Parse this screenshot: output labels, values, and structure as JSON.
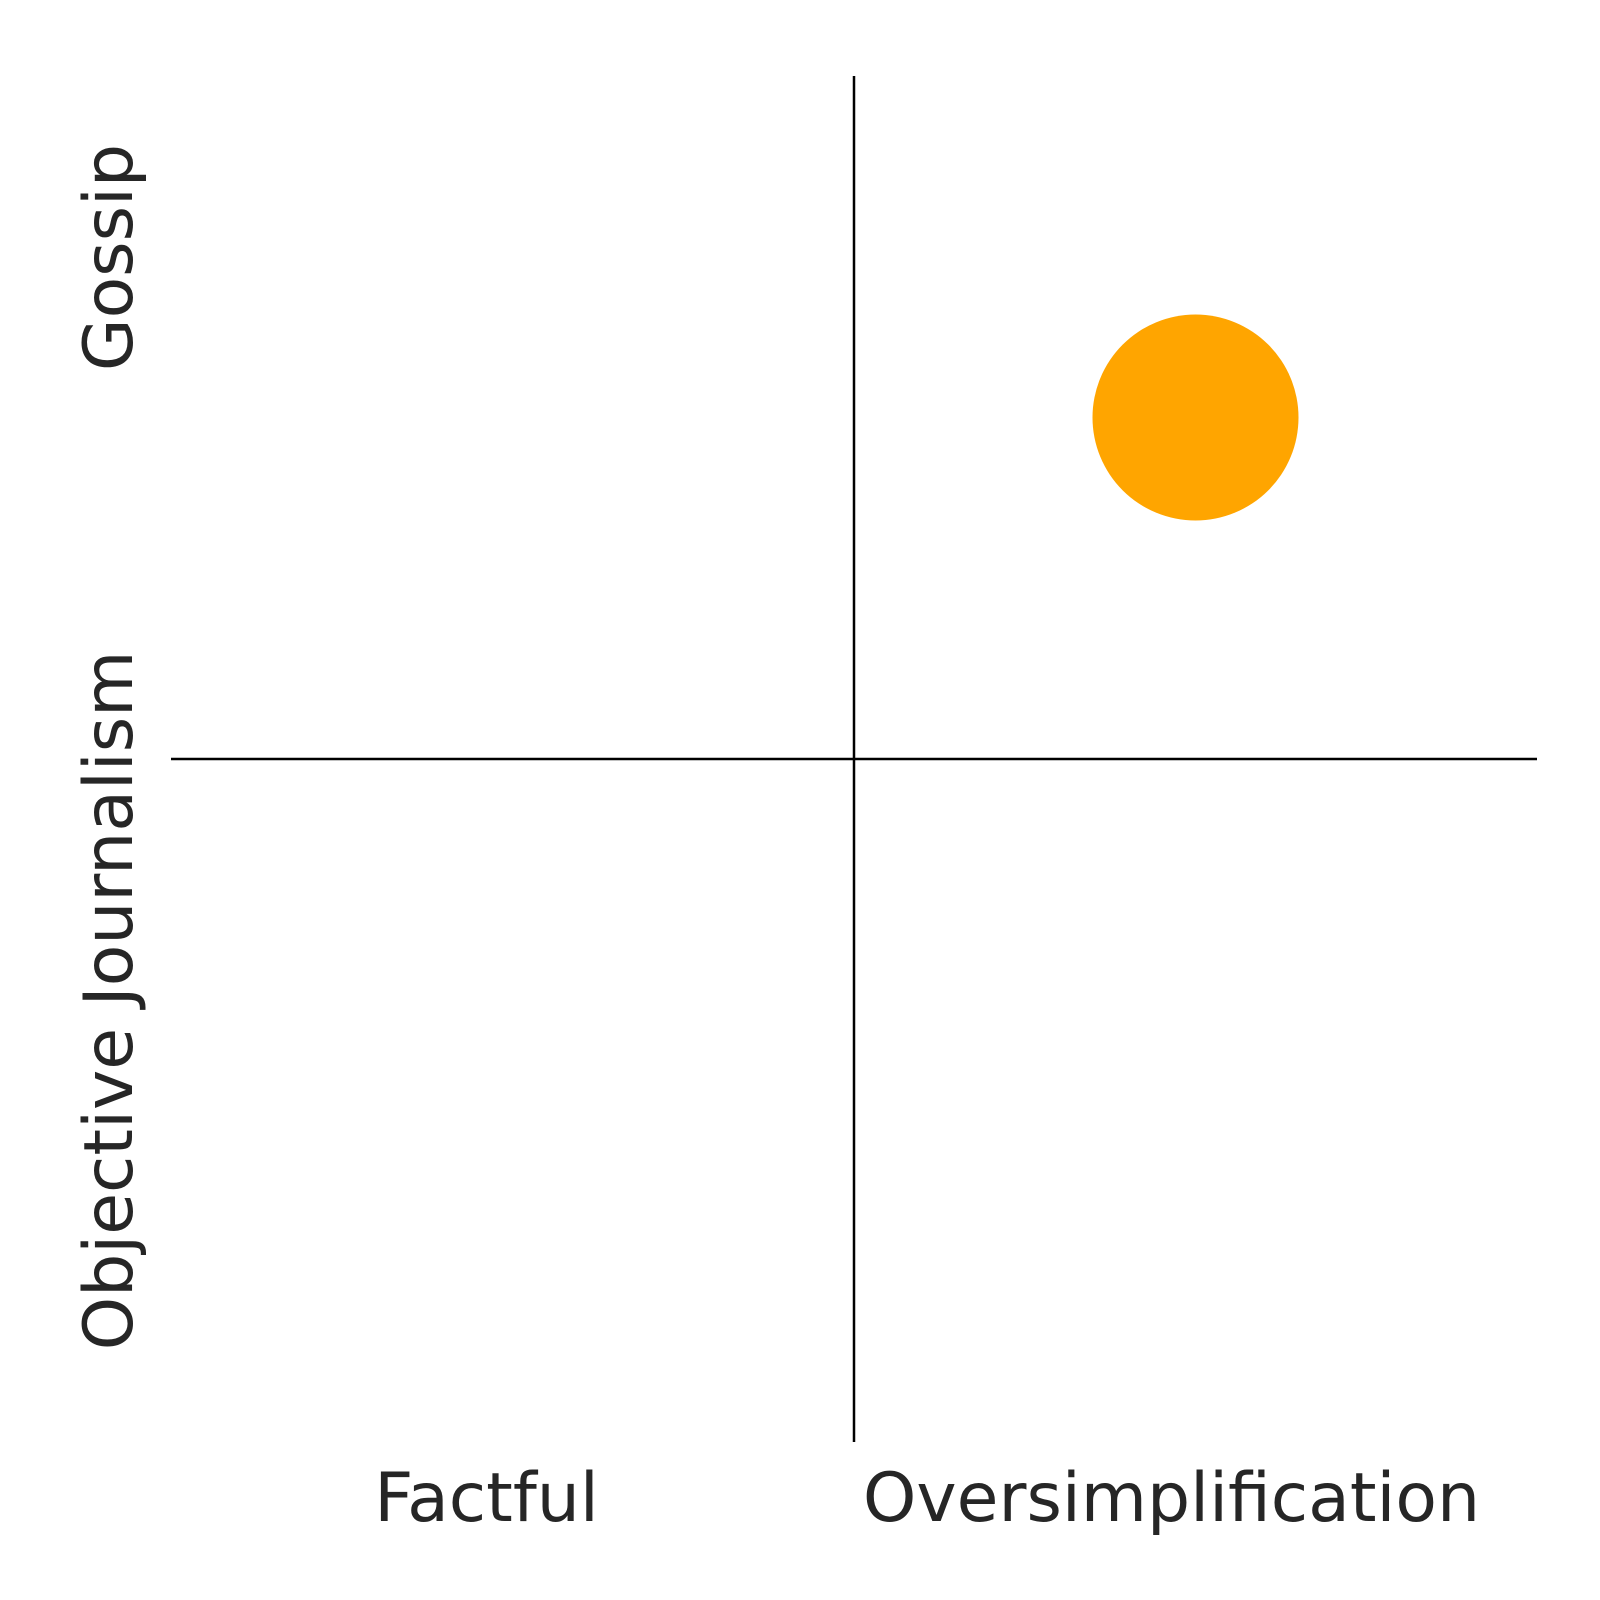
{
  "chart_data": {
    "type": "scatter",
    "x_labels": [
      "Factful",
      "Oversimplification"
    ],
    "y_labels": [
      "Objective Journalism",
      "Gossip"
    ],
    "xlim": [
      0,
      1
    ],
    "ylim": [
      0,
      1
    ],
    "grid": false,
    "points": [
      {
        "x": 0.75,
        "y": 0.75,
        "color": "#FFA500"
      }
    ],
    "axis_line_color": "#000000"
  }
}
